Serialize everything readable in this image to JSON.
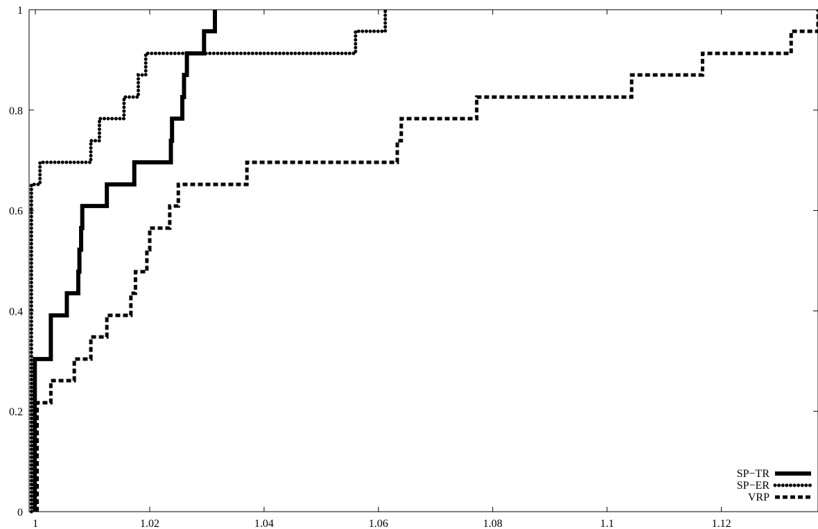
{
  "chart_data": {
    "type": "line",
    "title": "",
    "xlabel": "",
    "ylabel": "",
    "xlim": [
      0.9989,
      1.1369
    ],
    "ylim": [
      0,
      1
    ],
    "grid": false,
    "legend_position": "bottom-right",
    "x_ticks": [
      {
        "value": 1,
        "label": "1"
      },
      {
        "value": 1.02,
        "label": "1.02"
      },
      {
        "value": 1.04,
        "label": "1.04"
      },
      {
        "value": 1.06,
        "label": "1.06"
      },
      {
        "value": 1.08,
        "label": "1.08"
      },
      {
        "value": 1.1,
        "label": "1.1"
      },
      {
        "value": 1.12,
        "label": "1.12"
      }
    ],
    "y_ticks": [
      {
        "value": 0,
        "label": "0"
      },
      {
        "value": 0.2,
        "label": "0.2"
      },
      {
        "value": 0.4,
        "label": "0.4"
      },
      {
        "value": 0.6,
        "label": "0.6"
      },
      {
        "value": 0.8,
        "label": "0.8"
      },
      {
        "value": 1,
        "label": "1"
      }
    ],
    "series": [
      {
        "name": "SP−TR",
        "style": "solid",
        "color": "#000000",
        "step_points": [
          [
            0.9999,
            0.0
          ],
          [
            0.9999,
            0.304
          ],
          [
            1.0027,
            0.304
          ],
          [
            1.0027,
            0.391
          ],
          [
            1.0055,
            0.391
          ],
          [
            1.0055,
            0.435
          ],
          [
            1.0075,
            0.435
          ],
          [
            1.0075,
            0.478
          ],
          [
            1.0077,
            0.478
          ],
          [
            1.0077,
            0.522
          ],
          [
            1.008,
            0.522
          ],
          [
            1.008,
            0.565
          ],
          [
            1.0082,
            0.565
          ],
          [
            1.0082,
            0.609
          ],
          [
            1.0125,
            0.609
          ],
          [
            1.0125,
            0.652
          ],
          [
            1.0173,
            0.652
          ],
          [
            1.0173,
            0.696
          ],
          [
            1.0237,
            0.696
          ],
          [
            1.0237,
            0.739
          ],
          [
            1.0239,
            0.739
          ],
          [
            1.0239,
            0.783
          ],
          [
            1.0257,
            0.783
          ],
          [
            1.0257,
            0.826
          ],
          [
            1.026,
            0.826
          ],
          [
            1.026,
            0.87
          ],
          [
            1.0265,
            0.87
          ],
          [
            1.0265,
            0.913
          ],
          [
            1.0295,
            0.913
          ],
          [
            1.0295,
            0.957
          ],
          [
            1.0314,
            0.957
          ],
          [
            1.0314,
            1.0
          ]
        ]
      },
      {
        "name": "SP−ER",
        "style": "dotted",
        "color": "#000000",
        "step_points": [
          [
            0.9993,
            0.0
          ],
          [
            0.9993,
            0.652
          ],
          [
            1.0008,
            0.652
          ],
          [
            1.0008,
            0.696
          ],
          [
            1.0097,
            0.696
          ],
          [
            1.0097,
            0.739
          ],
          [
            1.0112,
            0.739
          ],
          [
            1.0112,
            0.783
          ],
          [
            1.0155,
            0.783
          ],
          [
            1.0155,
            0.826
          ],
          [
            1.018,
            0.826
          ],
          [
            1.018,
            0.87
          ],
          [
            1.0193,
            0.87
          ],
          [
            1.0193,
            0.913
          ],
          [
            1.056,
            0.913
          ],
          [
            1.056,
            0.957
          ],
          [
            1.0612,
            0.957
          ],
          [
            1.0612,
            1.0
          ]
        ]
      },
      {
        "name": "VRP",
        "style": "dashed",
        "color": "#000000",
        "step_points": [
          [
            1.0003,
            0.0
          ],
          [
            1.0003,
            0.217
          ],
          [
            1.0027,
            0.217
          ],
          [
            1.0027,
            0.261
          ],
          [
            1.0068,
            0.261
          ],
          [
            1.0068,
            0.304
          ],
          [
            1.0097,
            0.304
          ],
          [
            1.0097,
            0.348
          ],
          [
            1.0125,
            0.348
          ],
          [
            1.0125,
            0.391
          ],
          [
            1.0167,
            0.391
          ],
          [
            1.0167,
            0.435
          ],
          [
            1.0175,
            0.435
          ],
          [
            1.0175,
            0.478
          ],
          [
            1.0195,
            0.478
          ],
          [
            1.0195,
            0.522
          ],
          [
            1.02,
            0.522
          ],
          [
            1.02,
            0.565
          ],
          [
            1.0235,
            0.565
          ],
          [
            1.0235,
            0.609
          ],
          [
            1.025,
            0.609
          ],
          [
            1.025,
            0.652
          ],
          [
            1.037,
            0.652
          ],
          [
            1.037,
            0.696
          ],
          [
            1.0633,
            0.696
          ],
          [
            1.0633,
            0.739
          ],
          [
            1.064,
            0.739
          ],
          [
            1.064,
            0.783
          ],
          [
            1.0772,
            0.783
          ],
          [
            1.0772,
            0.826
          ],
          [
            1.1043,
            0.826
          ],
          [
            1.1043,
            0.87
          ],
          [
            1.1167,
            0.87
          ],
          [
            1.1167,
            0.913
          ],
          [
            1.1322,
            0.913
          ],
          [
            1.1322,
            0.957
          ],
          [
            1.1369,
            0.957
          ],
          [
            1.1369,
            1.0
          ]
        ]
      }
    ]
  }
}
